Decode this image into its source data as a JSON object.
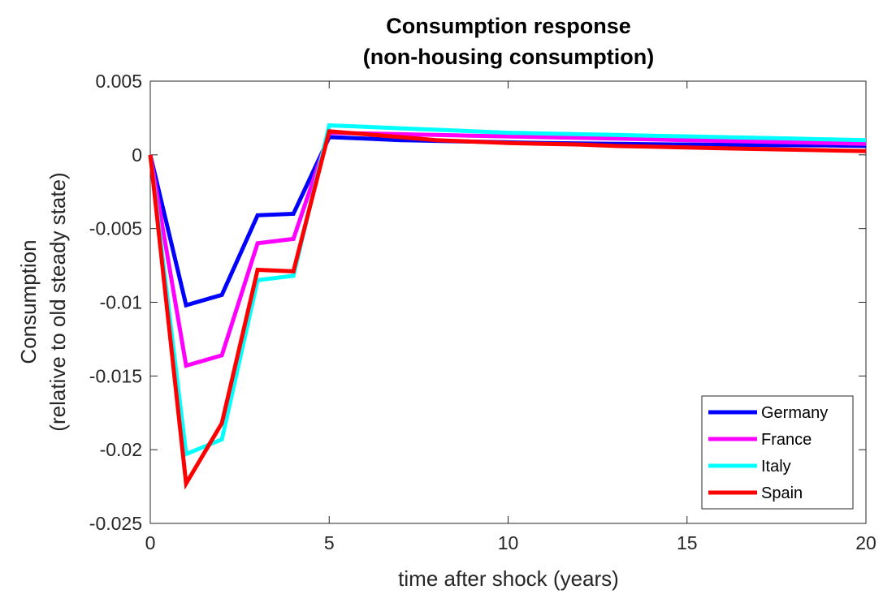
{
  "chart_data": {
    "type": "line",
    "title": [
      "Consumption response",
      "(non-housing consumption)"
    ],
    "xlabel": "time after shock (years)",
    "ylabel": [
      "Consumption",
      "(relative to old steady state)"
    ],
    "xlim": [
      0,
      20
    ],
    "ylim": [
      -0.025,
      0.005
    ],
    "xticks": [
      0,
      5,
      10,
      15,
      20
    ],
    "xtick_labels": [
      "0",
      "5",
      "10",
      "15",
      "20"
    ],
    "yticks": [
      0.005,
      0,
      -0.005,
      -0.01,
      -0.015,
      -0.02,
      -0.025
    ],
    "ytick_labels": [
      "0.005",
      "0",
      "-0.005",
      "-0.01",
      "-0.015",
      "-0.02",
      "-0.025"
    ],
    "grid": false,
    "legend_position": "bottom-right",
    "x": [
      0,
      1,
      2,
      3,
      4,
      5,
      6,
      7,
      8,
      9,
      10,
      11,
      12,
      13,
      14,
      15,
      16,
      17,
      18,
      19,
      20
    ],
    "series": [
      {
        "name": "Germany",
        "color": "#0000ff",
        "values": [
          0,
          -0.0102,
          -0.0095,
          -0.0041,
          -0.004,
          0.0012,
          0.0011,
          0.001,
          0.00095,
          0.0009,
          0.00085,
          0.0008,
          0.00078,
          0.00075,
          0.00072,
          0.0007,
          0.00068,
          0.00066,
          0.00065,
          0.00064,
          0.0006
        ]
      },
      {
        "name": "France",
        "color": "#ff00ff",
        "values": [
          0,
          -0.0143,
          -0.0136,
          -0.006,
          -0.0057,
          0.0015,
          0.00145,
          0.0014,
          0.00135,
          0.0013,
          0.00125,
          0.0012,
          0.00115,
          0.0011,
          0.00105,
          0.001,
          0.00095,
          0.0009,
          0.00085,
          0.0008,
          0.00075
        ]
      },
      {
        "name": "Italy",
        "color": "#00ffff",
        "values": [
          0,
          -0.0203,
          -0.0193,
          -0.0085,
          -0.0082,
          0.002,
          0.0019,
          0.0018,
          0.0017,
          0.0016,
          0.0015,
          0.00145,
          0.0014,
          0.00135,
          0.0013,
          0.00125,
          0.0012,
          0.00115,
          0.0011,
          0.00105,
          0.001
        ]
      },
      {
        "name": "Spain",
        "color": "#ff0000",
        "values": [
          0,
          -0.0223,
          -0.0182,
          -0.0078,
          -0.0079,
          0.0016,
          0.0014,
          0.0012,
          0.001,
          0.0009,
          0.0008,
          0.00075,
          0.0007,
          0.0006,
          0.00055,
          0.0005,
          0.00045,
          0.0004,
          0.00035,
          0.0003,
          0.00025
        ]
      }
    ]
  }
}
